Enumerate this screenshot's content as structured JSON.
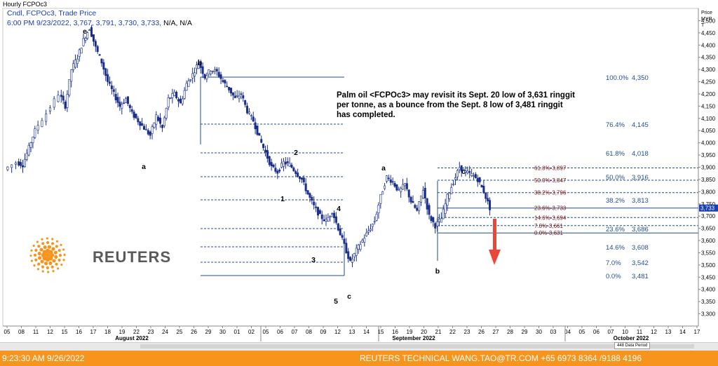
{
  "window_title": "Hourly FCPOc3",
  "series_label": "Cndl, FCPOc3, Trade Price",
  "ohlc_line": "6:00 PM 9/23/2022, 3,767, 3,791, 3,730, 3,733,",
  "ohlc_na": "N/A, N/A",
  "annotation": "Palm oil <FCPOc3> may revisit its Sept. 20 low of 3,631 ringgit\nper tonne, as a bounce from the Sept. 8 low of 3,481 ringgit\n has completed.",
  "footer": {
    "timestamp": "9:23:30 AM 9/26/2022",
    "credit": "REUTERS TECHNICAL  WANG.TAO@TR.COM  +65 6973 8364 /9188 4196"
  },
  "logo_text": "REUTERS",
  "data_period_label": "448 Data Period",
  "colors": {
    "candle_up": "#1a2f8c",
    "candle_down": "#1a2f8c",
    "fib_left": "#1f4e8c",
    "fib_right": "#7a1010",
    "arrow": "#e8483a",
    "footer_bg": "#f7941d",
    "price_marker_bg": "#1a3fb0"
  },
  "chart_data": {
    "type": "candlestick",
    "title": "Hourly FCPOc3",
    "y_axis_label": [
      "Price",
      "MYR",
      "T"
    ],
    "ylim": [
      3250,
      4550
    ],
    "y_ticks": [
      3300,
      3350,
      3400,
      3450,
      3500,
      3550,
      3600,
      3650,
      3700,
      3750,
      3800,
      3850,
      3900,
      3950,
      4000,
      4050,
      4100,
      4150,
      4200,
      4250,
      4300,
      4350,
      4400,
      4450,
      4500
    ],
    "current_price": "3,733",
    "x_ticks": [
      "05",
      "08",
      "11",
      "12",
      "15",
      "16",
      "17",
      "18",
      "19",
      "22",
      "23",
      "24",
      "25",
      "26",
      "29",
      "30",
      "01",
      "02",
      "05",
      "06",
      "07",
      "08",
      "09",
      "12",
      "13",
      "14",
      "15",
      "16",
      "19",
      "20",
      "21",
      "22",
      "23",
      "26",
      "27",
      "28",
      "29",
      "30",
      "03",
      "04",
      "05",
      "06",
      "07",
      "10",
      "11",
      "12",
      "13",
      "14",
      "17"
    ],
    "month_labels": [
      "August 2022",
      "September 2022",
      "October 2022"
    ],
    "wave_labels": [
      "e",
      "a",
      "b",
      "1",
      "2",
      "3",
      "4",
      "5",
      "c",
      "a",
      "b",
      "c"
    ],
    "fib_left": [
      {
        "label": "100.0%",
        "value": "4,350"
      },
      {
        "label": "76.4%",
        "value": "4,145"
      },
      {
        "label": "61.8%",
        "value": "4,018"
      },
      {
        "label": "50.0%",
        "value": "3,916"
      },
      {
        "label": "38.2%",
        "value": "3,813"
      },
      {
        "label": "23.6%",
        "value": "3,686"
      },
      {
        "label": "14.6%",
        "value": "3,608"
      },
      {
        "label": "7.0%",
        "value": "3,542"
      },
      {
        "label": "0.0%",
        "value": "3,481"
      }
    ],
    "fib_right": [
      {
        "label": "61.8%-3,897",
        "price": 3897
      },
      {
        "label": "50.0%-3,847",
        "price": 3847
      },
      {
        "label": "38.2%-3,796",
        "price": 3796
      },
      {
        "label": "23.6%-3,733",
        "price": 3733
      },
      {
        "label": "14.6%-3,694",
        "price": 3694
      },
      {
        "label": "7.0%-3,661",
        "price": 3661
      },
      {
        "label": "0.0%-3,631",
        "price": 3631
      }
    ],
    "price_path": [
      [
        0,
        3890
      ],
      [
        2,
        3920
      ],
      [
        3,
        3910
      ],
      [
        4,
        3980
      ],
      [
        5,
        4050
      ],
      [
        7,
        4120
      ],
      [
        9,
        4200
      ],
      [
        10,
        4150
      ],
      [
        11,
        4300
      ],
      [
        12,
        4350
      ],
      [
        13,
        4420
      ],
      [
        14,
        4470
      ],
      [
        15,
        4390
      ],
      [
        16,
        4330
      ],
      [
        17,
        4250
      ],
      [
        18,
        4200
      ],
      [
        19,
        4150
      ],
      [
        20,
        4180
      ],
      [
        21,
        4120
      ],
      [
        22,
        4090
      ],
      [
        23,
        4060
      ],
      [
        24,
        4030
      ],
      [
        25,
        4110
      ],
      [
        26,
        4060
      ],
      [
        27,
        4180
      ],
      [
        28,
        4200
      ],
      [
        29,
        4160
      ],
      [
        30,
        4240
      ],
      [
        31,
        4280
      ],
      [
        32,
        4330
      ],
      [
        33,
        4270
      ],
      [
        34,
        4300
      ],
      [
        35,
        4290
      ],
      [
        36,
        4250
      ],
      [
        37,
        4220
      ],
      [
        38,
        4180
      ],
      [
        39,
        4200
      ],
      [
        40,
        4130
      ],
      [
        41,
        4090
      ],
      [
        42,
        4020
      ],
      [
        43,
        3960
      ],
      [
        44,
        3900
      ],
      [
        45,
        3880
      ],
      [
        46,
        3920
      ],
      [
        47,
        3910
      ],
      [
        48,
        3880
      ],
      [
        49,
        3850
      ],
      [
        50,
        3790
      ],
      [
        51,
        3740
      ],
      [
        52,
        3700
      ],
      [
        53,
        3680
      ],
      [
        54,
        3720
      ],
      [
        55,
        3650
      ],
      [
        56,
        3580
      ],
      [
        57,
        3510
      ],
      [
        58,
        3560
      ],
      [
        59,
        3600
      ],
      [
        60,
        3640
      ],
      [
        61,
        3680
      ],
      [
        62,
        3780
      ],
      [
        63,
        3860
      ],
      [
        64,
        3840
      ],
      [
        65,
        3800
      ],
      [
        66,
        3830
      ],
      [
        67,
        3760
      ],
      [
        68,
        3720
      ],
      [
        69,
        3810
      ],
      [
        70,
        3700
      ],
      [
        71,
        3660
      ],
      [
        72,
        3690
      ],
      [
        73,
        3780
      ],
      [
        74,
        3840
      ],
      [
        75,
        3900
      ],
      [
        76,
        3880
      ],
      [
        77,
        3870
      ],
      [
        78,
        3850
      ],
      [
        79,
        3800
      ],
      [
        80,
        3733
      ]
    ]
  }
}
